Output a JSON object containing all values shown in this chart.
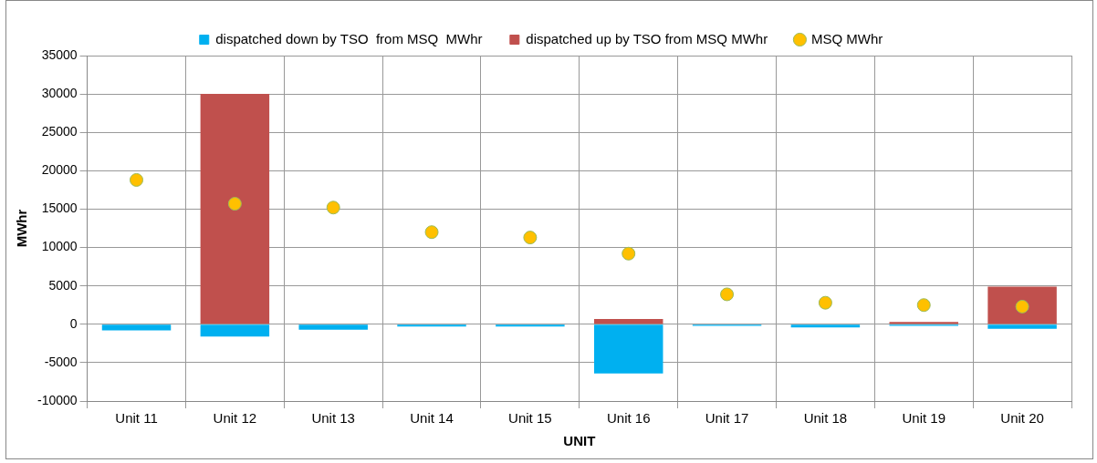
{
  "chart_data": {
    "type": "bar",
    "stacked": true,
    "xlabel": "UNIT",
    "ylabel": "MWhr",
    "categories": [
      "Unit 11",
      "Unit 12",
      "Unit 13",
      "Unit 14",
      "Unit 15",
      "Unit 16",
      "Unit 17",
      "Unit 18",
      "Unit 19",
      "Unit 20"
    ],
    "series": [
      {
        "name": "dispatched down by TSO  from MSQ  MWhr",
        "color": "#00b0f0",
        "values": [
          -800,
          -1600,
          -700,
          -300,
          -300,
          -6400,
          -200,
          -400,
          -200,
          -600
        ]
      },
      {
        "name": "dispatched up by TSO from MSQ MWhr",
        "color": "#c0504d",
        "values": [
          0,
          30000,
          0,
          null,
          null,
          700,
          0,
          0,
          300,
          4900
        ]
      },
      {
        "name": "MSQ MWhr",
        "type": "scatter",
        "color": "#ffc000",
        "marker": "circle",
        "values": [
          18800,
          15700,
          15200,
          12000,
          11300,
          9200,
          3900,
          2800,
          2500,
          2300
        ]
      }
    ],
    "ylim": [
      -10000,
      35000
    ],
    "yticks": [
      -10000,
      -5000,
      0,
      5000,
      10000,
      15000,
      20000,
      25000,
      30000,
      35000
    ],
    "grid": true,
    "legend": "top"
  }
}
